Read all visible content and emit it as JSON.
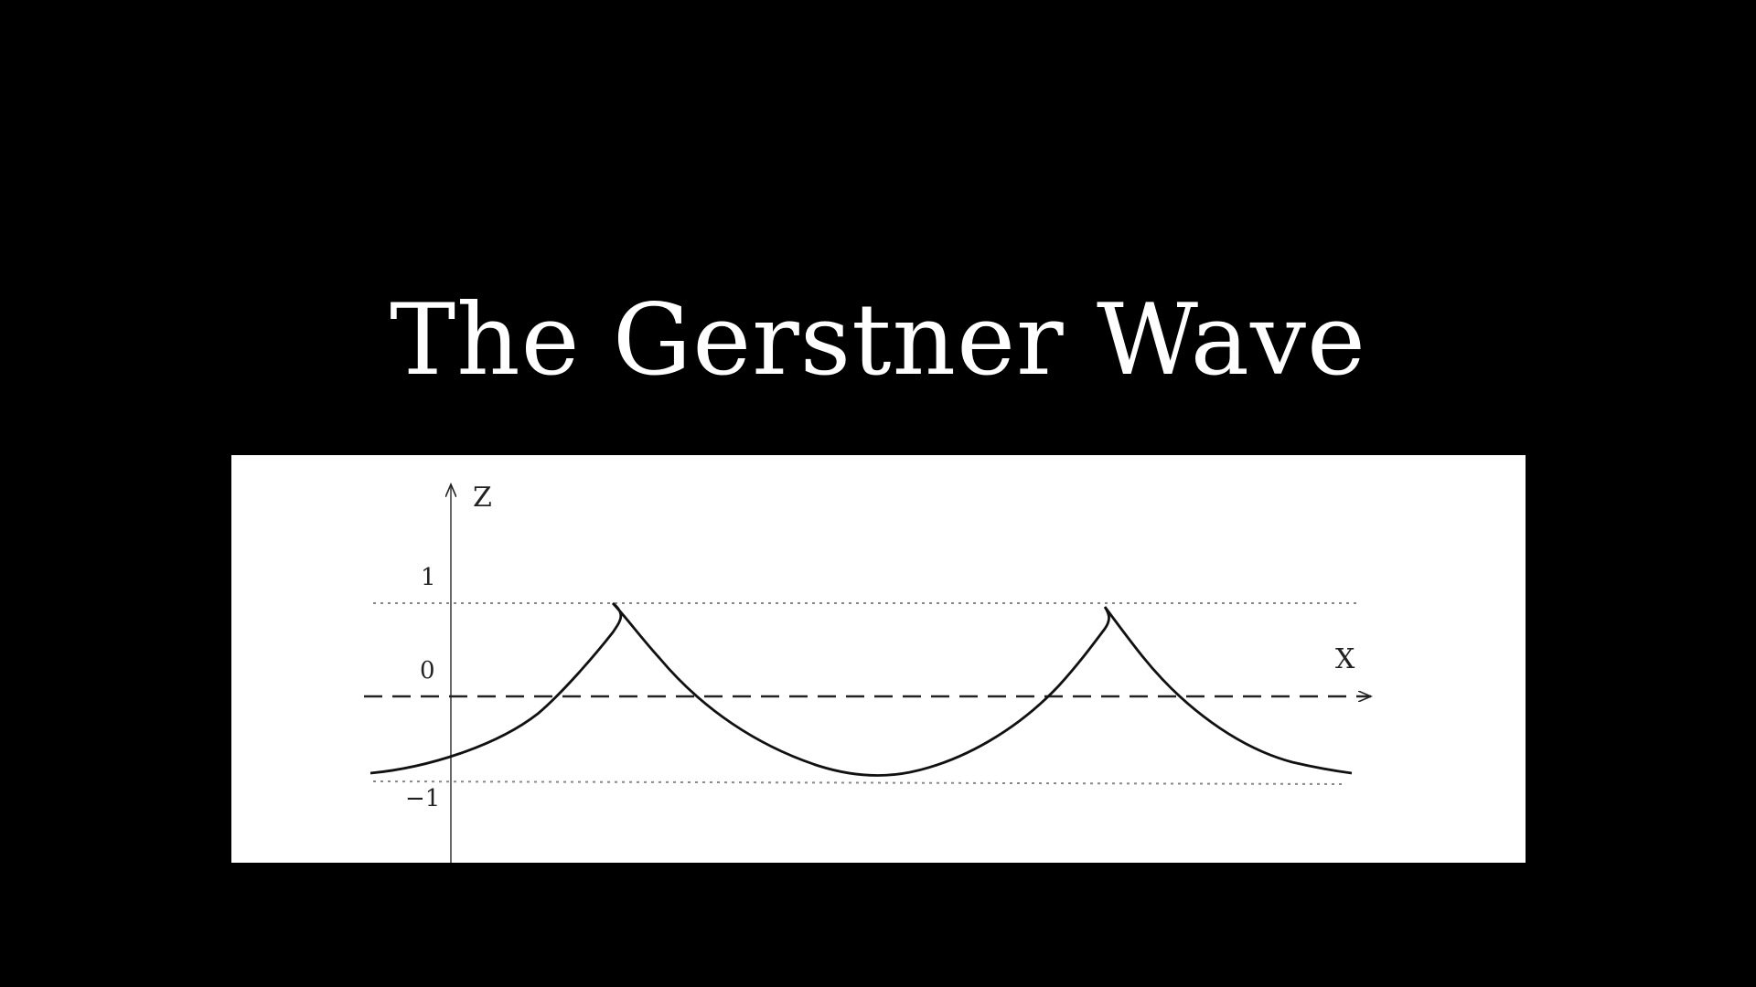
{
  "slide": {
    "title": "The Gerstner Wave",
    "background_color": "#000000",
    "text_color": "#ffffff"
  },
  "figure": {
    "background_color": "#ffffff",
    "axis_labels": {
      "x": "X",
      "z": "Z"
    },
    "tick_labels": [
      "1",
      "0",
      "−1"
    ],
    "reference_levels": [
      1,
      0,
      -1
    ],
    "curve": {
      "description_type": "trochoid",
      "color": "#000000",
      "crest_count": 2,
      "trough_count": 1
    }
  }
}
